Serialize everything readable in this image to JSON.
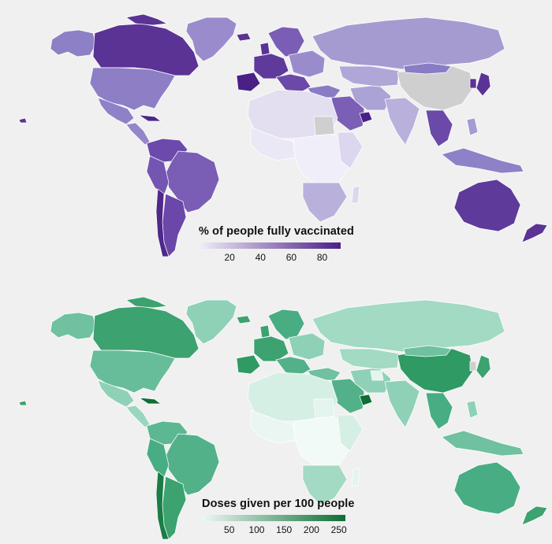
{
  "maps": [
    {
      "id": "vaccinated",
      "legend_title": "% of people fully vaccinated",
      "ticks": [
        "20",
        "40",
        "60",
        "80"
      ],
      "tick_values": [
        20,
        40,
        60,
        80
      ],
      "scale_min": 0,
      "scale_max": 92,
      "color_low": "#f1eff8",
      "color_high": "#4a2086",
      "no_data_color": "#cfcfcf"
    },
    {
      "id": "doses",
      "legend_title": "Doses given per 100 people",
      "ticks": [
        "50",
        "100",
        "150",
        "200",
        "250"
      ],
      "tick_values": [
        50,
        100,
        150,
        200,
        250
      ],
      "scale_min": 0,
      "scale_max": 262,
      "color_low": "#eef8f4",
      "color_high": "#0e6e36",
      "no_data_color": "#cfcfcf"
    }
  ]
}
